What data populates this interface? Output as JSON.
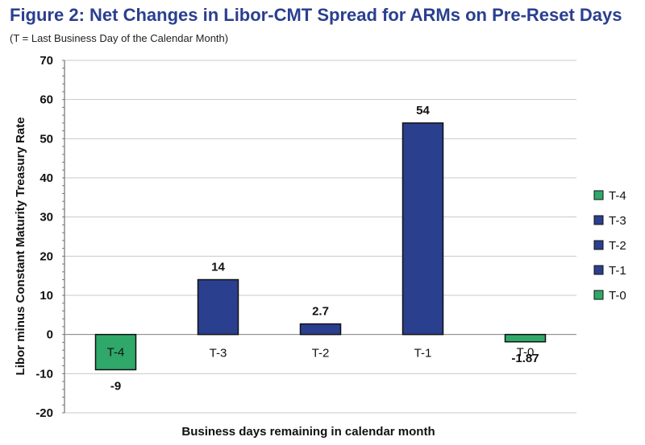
{
  "title": "Figure 2: Net Changes in Libor-CMT Spread for ARMs on Pre-Reset Days",
  "subtitle": "(T = Last Business Day of the Calendar Month)",
  "chart_data": {
    "type": "bar",
    "categories": [
      "T-4",
      "T-3",
      "T-2",
      "T-1",
      "T-0"
    ],
    "values": [
      -9,
      14,
      2.7,
      54,
      -1.87
    ],
    "data_labels": [
      "-9",
      "14",
      "2.7",
      "54",
      "-1.87"
    ],
    "bar_colors": [
      "#2fa86a",
      "#2b3f8f",
      "#2b3f8f",
      "#2b3f8f",
      "#2fa86a"
    ],
    "xlabel": "Business days remaining in calendar month",
    "ylabel": "Libor minus Constant Maturity Treasury Rate",
    "ylim": [
      -20,
      70
    ],
    "yticks": [
      70,
      60,
      50,
      40,
      30,
      20,
      10,
      0,
      -10,
      -20
    ],
    "grid": true,
    "legend_position": "right",
    "legend": [
      {
        "label": "T-4",
        "color": "#2fa86a"
      },
      {
        "label": "T-3",
        "color": "#2b3f8f"
      },
      {
        "label": "T-2",
        "color": "#2b3f8f"
      },
      {
        "label": "T-1",
        "color": "#2b3f8f"
      },
      {
        "label": "T-0",
        "color": "#2fa86a"
      }
    ]
  }
}
